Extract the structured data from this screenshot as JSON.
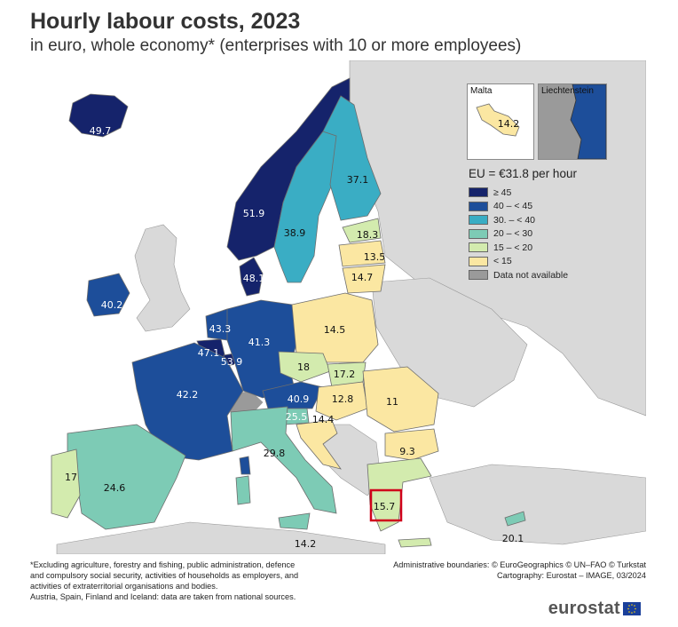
{
  "header": {
    "title": "Hourly labour costs, 2023",
    "subtitle": "in euro, whole economy* (enterprises with 10 or more employees)"
  },
  "legend": {
    "title": "EU = €31.8 per hour",
    "items": [
      {
        "label": "≥ 45",
        "color": "#15236b"
      },
      {
        "label": "40 – < 45",
        "color": "#1d4e9a"
      },
      {
        "label": "30. – < 40",
        "color": "#3aadc4"
      },
      {
        "label": "20 – < 30",
        "color": "#7dcbb5"
      },
      {
        "label": "15 – < 20",
        "color": "#d3ebae"
      },
      {
        "label": "< 15",
        "color": "#fbe7a2"
      },
      {
        "label": "Data not available",
        "color": "#9a9a9a"
      }
    ]
  },
  "insets": {
    "malta": {
      "title": "Malta",
      "value": "14.2"
    },
    "liechtenstein": {
      "title": "Liechtenstein"
    }
  },
  "regions": {
    "iceland": "49.7",
    "norway": "51.9",
    "sweden": "38.9",
    "finland": "37.1",
    "estonia": "18.3",
    "latvia": "13.5",
    "lithuania": "14.7",
    "denmark": "48.1",
    "ireland": "40.2",
    "netherlands": "43.3",
    "belgium": "47.1",
    "luxembourg": "53.9",
    "germany": "41.3",
    "poland": "14.5",
    "czechia": "18",
    "slovakia": "17.2",
    "austria": "40.9",
    "hungary": "12.8",
    "romania": "11",
    "slovenia": "25.5",
    "croatia": "14.4",
    "bulgaria": "9.3",
    "france": "42.2",
    "italy": "29.8",
    "spain": "24.6",
    "portugal": "17",
    "greece": "15.7",
    "cyprus": "20.1",
    "malta": "14.2"
  },
  "colors": {
    "sea": "#ffffff",
    "non_eu_land": "#d9d9d9",
    "border": "#7a7a7a",
    "highlight": "#d0021b"
  },
  "footer": {
    "note_lines": [
      "*Excluding agriculture, forestry and fishing, public administration, defence",
      "and compulsory social security, activities of households as employers, and",
      "activities of extraterritorial organisations and bodies.",
      "Austria, Spain, Finland and Iceland: data are taken from national sources."
    ],
    "credit_lines": [
      "Administrative boundaries: © EuroGeographics © UN–FAO © Turkstat",
      "Cartography: Eurostat – IMAGE, 03/2024"
    ],
    "logo": "eurostat"
  }
}
